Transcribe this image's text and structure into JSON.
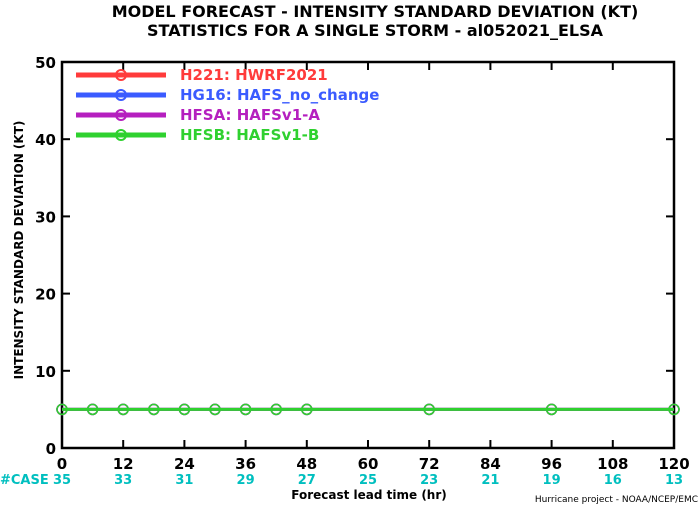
{
  "chart_data": {
    "type": "line",
    "title": "MODEL FORECAST - INTENSITY STANDARD DEVIATION (KT)",
    "subtitle": "STATISTICS FOR A SINGLE STORM - al052021_ELSA",
    "xlabel": "Forecast lead time (hr)",
    "ylabel": "INTENSITY STANDARD DEVIATION (KT)",
    "xlim": [
      0,
      120
    ],
    "ylim": [
      0,
      50
    ],
    "xticks": [
      0,
      12,
      24,
      36,
      48,
      60,
      72,
      84,
      96,
      108,
      120
    ],
    "xtick_labels": [
      "0",
      "12",
      "24",
      "36",
      "48",
      "60",
      "72",
      "84",
      "96",
      "108",
      "120"
    ],
    "yticks": [
      0,
      10,
      20,
      30,
      40,
      50
    ],
    "ytick_labels": [
      "0",
      "10",
      "20",
      "30",
      "40",
      "50"
    ],
    "case_label": "#CASE",
    "cases": [
      "35",
      "33",
      "31",
      "29",
      "27",
      "25",
      "23",
      "21",
      "19",
      "16",
      "13"
    ],
    "case_color": "#00bfbf",
    "grid": false,
    "legend_position": "top-left",
    "series": [
      {
        "name": "H221: HWRF2021",
        "color": "#ff3b3b",
        "x": [
          0,
          6,
          12,
          18,
          24,
          30,
          36,
          42,
          48,
          72,
          96,
          120
        ],
        "y": [
          5,
          5,
          5,
          5,
          5,
          5,
          5,
          5,
          5,
          5,
          5,
          5
        ]
      },
      {
        "name": "HG16: HAFS_no_change",
        "color": "#3b5bff",
        "x": [
          0,
          6,
          12,
          18,
          24,
          30,
          36,
          42,
          48,
          72,
          96,
          120
        ],
        "y": [
          5,
          5,
          5,
          5,
          5,
          5,
          5,
          5,
          5,
          5,
          5,
          5
        ]
      },
      {
        "name": "HFSA: HAFSv1-A",
        "color": "#b51fbf",
        "x": [
          0,
          6,
          12,
          18,
          24,
          30,
          36,
          42,
          48,
          72,
          96,
          120
        ],
        "y": [
          5,
          5,
          5,
          5,
          5,
          5,
          5,
          5,
          5,
          5,
          5,
          5
        ]
      },
      {
        "name": "HFSB: HAFSv1-B",
        "color": "#2fd12f",
        "x": [
          0,
          6,
          12,
          18,
          24,
          30,
          36,
          42,
          48,
          72,
          96,
          120
        ],
        "y": [
          5,
          5,
          5,
          5,
          5,
          5,
          5,
          5,
          5,
          5,
          5,
          5
        ]
      }
    ]
  },
  "credit": "Hurricane project - NOAA/NCEP/EMC"
}
